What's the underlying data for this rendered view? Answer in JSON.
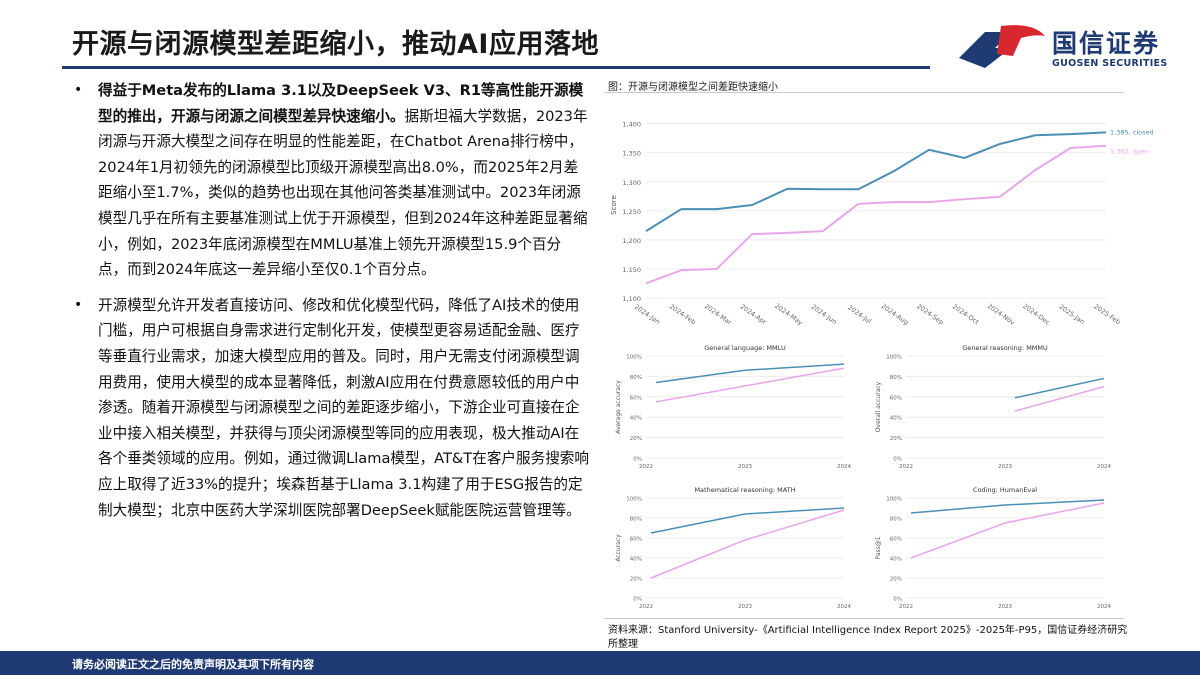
{
  "header": {
    "title": "开源与闭源模型差距缩小，推动AI应用落地",
    "logo_cn": "国信证券",
    "logo_en": "GUOSEN SECURITIES"
  },
  "bullets": [
    {
      "bold": "得益于Meta发布的Llama 3.1以及DeepSeek V3、R1等高性能开源模型的推出，开源与闭源之间模型差异快速缩小。",
      "text": "据斯坦福大学数据，2023年闭源与开源大模型之间存在明显的性能差距，在Chatbot Arena排行榜中，2024年1月初领先的闭源模型比顶级开源模型高出8.0%，而2025年2月差距缩小至1.7%，类似的趋势也出现在其他问答类基准测试中。2023年闭源模型几乎在所有主要基准测试上优于开源模型，但到2024年这种差距显著缩小，例如，2023年底闭源模型在MMLU基准上领先开源模型15.9个百分点，而到2024年底这一差异缩小至仅0.1个百分点。"
    },
    {
      "bold": "",
      "text": "开源模型允许开发者直接访问、修改和优化模型代码，降低了AI技术的使用门槛，用户可根据自身需求进行定制化开发，使模型更容易适配金融、医疗等垂直行业需求，加速大模型应用的普及。同时，用户无需支付闭源模型调用费用，使用大模型的成本显著降低，刺激AI应用在付费意愿较低的用户中渗透。随着开源模型与闭源模型之间的差距逐步缩小，下游企业可直接在企业中接入相关模型，并获得与顶尖闭源模型等同的应用表现，极大推动AI在各个垂类领域的应用。例如，通过微调Llama模型，AT&T在客户服务搜索响应上取得了近33%的提升；埃森哲基于Llama 3.1构建了用于ESG报告的定制大模型；北京中医药大学深圳医院部署DeepSeek赋能医院运营管理等。"
    }
  ],
  "figure": {
    "title": "图：开源与闭源模型之间差距快速缩小",
    "source": "资料来源：Stanford University-《Artificial Intelligence Index Report 2025》-2025年-P95，国信证券经济研究所整理"
  },
  "footer": {
    "text": "请务必阅读正文之后的免责声明及其项下所有内容"
  },
  "colors": {
    "closed": "#4a8fb4",
    "open": "#e7a6ea",
    "brand": "#1f3a73",
    "logo_red": "#d7282f"
  },
  "chart_data": [
    {
      "id": "main",
      "type": "line",
      "title": "",
      "xlabel": "",
      "ylabel": "Score",
      "ylim": [
        1100,
        1420
      ],
      "yticks": [
        1100,
        1150,
        1200,
        1250,
        1300,
        1350,
        1400
      ],
      "ytick_labels": [
        "1,100",
        "1,150",
        "1,200",
        "1,250",
        "1,300",
        "1,350",
        "1,400"
      ],
      "categories": [
        "2024-Jan",
        "2024-Feb",
        "2024-Mar",
        "2024-Apr",
        "2024-May",
        "2024-Jun",
        "2024-Jul",
        "2024-Aug",
        "2024-Sep",
        "2024-Oct",
        "2024-Nov",
        "2024-Dec",
        "2025-Jan",
        "2025-Feb"
      ],
      "series": [
        {
          "key": "closed",
          "label": "1,385, closed",
          "values": [
            1215,
            1253,
            1253,
            1260,
            1288,
            1287,
            1287,
            1318,
            1355,
            1341,
            1365,
            1380,
            1382,
            1385
          ]
        },
        {
          "key": "open",
          "label": "1,362, open",
          "values": [
            1125,
            1148,
            1150,
            1210,
            1212,
            1215,
            1262,
            1265,
            1265,
            1270,
            1274,
            1320,
            1358,
            1362
          ]
        }
      ],
      "grid": true
    },
    {
      "id": "mmlu",
      "type": "line",
      "title": "General language: MMLU",
      "ylabel": "Average accuracy",
      "ylim": [
        0,
        100
      ],
      "yticks": [
        0,
        20,
        40,
        60,
        80,
        100
      ],
      "ytick_labels": [
        "0%",
        "20%",
        "40%",
        "60%",
        "80%",
        "100%"
      ],
      "xlim": [
        2022,
        2024
      ],
      "xticks": [
        2022,
        2023,
        2024
      ],
      "series": [
        {
          "key": "closed",
          "x": [
            2022.1,
            2023.0,
            2024.0
          ],
          "values": [
            74,
            86,
            92
          ]
        },
        {
          "key": "open",
          "x": [
            2022.1,
            2024.0
          ],
          "values": [
            55,
            88
          ]
        }
      ],
      "grid": true
    },
    {
      "id": "mmmu",
      "type": "line",
      "title": "General reasoning: MMMU",
      "ylabel": "Overall accuracy",
      "ylim": [
        0,
        100
      ],
      "yticks": [
        0,
        20,
        40,
        60,
        80,
        100
      ],
      "ytick_labels": [
        "0%",
        "20%",
        "40%",
        "60%",
        "80%",
        "100%"
      ],
      "xlim": [
        2022,
        2024
      ],
      "xticks": [
        2022,
        2023,
        2024
      ],
      "series": [
        {
          "key": "closed",
          "x": [
            2023.1,
            2024.0
          ],
          "values": [
            59,
            78
          ]
        },
        {
          "key": "open",
          "x": [
            2023.1,
            2024.0
          ],
          "values": [
            46,
            70
          ]
        }
      ],
      "grid": true
    },
    {
      "id": "math",
      "type": "line",
      "title": "Mathematical reasoning: MATH",
      "ylabel": "Accuracy",
      "ylim": [
        0,
        100
      ],
      "yticks": [
        0,
        20,
        40,
        60,
        80,
        100
      ],
      "ytick_labels": [
        "0%",
        "20%",
        "40%",
        "60%",
        "80%",
        "100%"
      ],
      "xlim": [
        2022,
        2024
      ],
      "xticks": [
        2022,
        2023,
        2024
      ],
      "series": [
        {
          "key": "closed",
          "x": [
            2022.05,
            2023.0,
            2024.0
          ],
          "values": [
            65,
            84,
            90
          ]
        },
        {
          "key": "open",
          "x": [
            2022.05,
            2023.0,
            2024.0
          ],
          "values": [
            20,
            58,
            88
          ]
        }
      ],
      "grid": true
    },
    {
      "id": "humaneval",
      "type": "line",
      "title": "Coding: HumanEval",
      "ylabel": "Pass@1",
      "ylim": [
        0,
        100
      ],
      "yticks": [
        0,
        20,
        40,
        60,
        80,
        100
      ],
      "ytick_labels": [
        "0%",
        "20%",
        "40%",
        "60%",
        "80%",
        "100%"
      ],
      "xlim": [
        2022,
        2024
      ],
      "xticks": [
        2022,
        2023,
        2024
      ],
      "series": [
        {
          "key": "closed",
          "x": [
            2022.05,
            2023.0,
            2024.0
          ],
          "values": [
            85,
            93,
            98
          ]
        },
        {
          "key": "open",
          "x": [
            2022.05,
            2023.0,
            2024.0
          ],
          "values": [
            40,
            75,
            95
          ]
        }
      ],
      "grid": true
    }
  ]
}
